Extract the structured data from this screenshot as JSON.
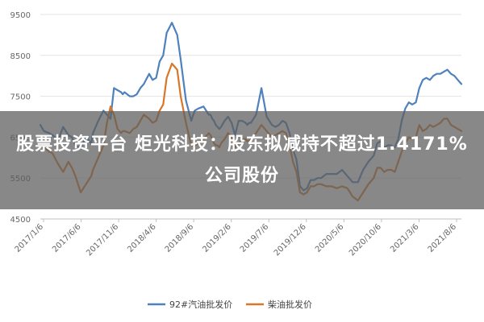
{
  "headline": "股票投资平台 炬光科技：股东拟减持不超过1.4171%公司股份",
  "chart_data": {
    "type": "line",
    "ylim": [
      4500,
      9500
    ],
    "yticks": [
      4500,
      5500,
      6500,
      7500,
      8500,
      9500
    ],
    "ytick_labels": [
      "4500",
      "5500",
      "6500",
      "7500",
      "8500",
      "9500"
    ],
    "xtick_labels": [
      "2017/1/6",
      "2017/6/6",
      "2017/11/6",
      "2018/4/6",
      "2018/9/6",
      "2019/2/6",
      "2019/7/6",
      "2019/12/6",
      "2020/5/6",
      "2020/10/6",
      "2021/3/6",
      "2021/8/6"
    ],
    "grid": "horizontal",
    "legend_position": "bottom",
    "series": [
      {
        "name": "92#汽油批发价",
        "color": "#4f81bd",
        "x": [
          0,
          2,
          5,
          7,
          10,
          13,
          16,
          18,
          20,
          23,
          26,
          29,
          30,
          33,
          36,
          38,
          40,
          42,
          44,
          46,
          47,
          48,
          51,
          53,
          55,
          57,
          59,
          62,
          64,
          66,
          68,
          70,
          72,
          75,
          78,
          80,
          83,
          86,
          88,
          90,
          93,
          96,
          97,
          98,
          99,
          100,
          101,
          102,
          103,
          105,
          107,
          109,
          111,
          113,
          115,
          117,
          118,
          119,
          120,
          123,
          126,
          129,
          132,
          134,
          136,
          138,
          140,
          142,
          144,
          146,
          148,
          150,
          152,
          154,
          156,
          158,
          160,
          163,
          166,
          169,
          172,
          175,
          178,
          181,
          184,
          187,
          190,
          192,
          194,
          196,
          198,
          200,
          202,
          204,
          206,
          208,
          210,
          212,
          214,
          216,
          218,
          220,
          222,
          224,
          226,
          228,
          230,
          232,
          234,
          236,
          238,
          240
        ],
        "values": [
          6800,
          6650,
          6600,
          6550,
          6420,
          6750,
          6550,
          6500,
          6300,
          6220,
          6500,
          6350,
          6600,
          6900,
          7150,
          7050,
          6950,
          7700,
          7650,
          7600,
          7550,
          7600,
          7500,
          7500,
          7550,
          7700,
          7800,
          8050,
          7900,
          7950,
          8350,
          8500,
          9050,
          9300,
          9000,
          8400,
          7400,
          6900,
          7150,
          7200,
          7250,
          7050,
          7050,
          6950,
          6900,
          6800,
          6750,
          6700,
          6750,
          6900,
          7000,
          6850,
          6550,
          6900,
          6900,
          6850,
          6800,
          6850,
          6850,
          7050,
          7700,
          7000,
          6800,
          6750,
          6800,
          6900,
          6850,
          6600,
          6200,
          5950,
          5300,
          5200,
          5250,
          5450,
          5450,
          5500,
          5500,
          5600,
          5600,
          5600,
          5700,
          5550,
          5400,
          5400,
          5700,
          5900,
          6050,
          6350,
          6400,
          6250,
          6300,
          6300,
          6250,
          6450,
          6900,
          7200,
          7350,
          7300,
          7350,
          7700,
          7900,
          7950,
          7900,
          8000,
          8050,
          8050,
          8100,
          8150,
          8050,
          8000,
          7900,
          7800
        ]
      },
      {
        "name": "柴油批发价",
        "color": "#d6772a",
        "x": [
          0,
          2,
          5,
          7,
          10,
          13,
          16,
          18,
          20,
          23,
          26,
          29,
          30,
          33,
          36,
          38,
          40,
          42,
          44,
          46,
          47,
          48,
          51,
          53,
          55,
          57,
          59,
          62,
          64,
          66,
          68,
          70,
          72,
          75,
          78,
          80,
          83,
          86,
          88,
          90,
          93,
          96,
          97,
          98,
          99,
          100,
          101,
          102,
          103,
          105,
          107,
          109,
          111,
          113,
          115,
          117,
          118,
          119,
          120,
          123,
          126,
          129,
          132,
          134,
          136,
          138,
          140,
          142,
          144,
          146,
          148,
          150,
          152,
          154,
          156,
          158,
          160,
          163,
          166,
          169,
          172,
          175,
          178,
          181,
          184,
          187,
          190,
          192,
          194,
          196,
          198,
          200,
          202,
          204,
          206,
          208,
          210,
          212,
          214,
          216,
          218,
          220,
          222,
          224,
          226,
          228,
          230,
          232,
          234,
          236,
          238,
          240
        ],
        "values": [
          6300,
          6250,
          6150,
          6100,
          5850,
          5650,
          5900,
          5750,
          5550,
          5150,
          5350,
          5550,
          5700,
          6000,
          6300,
          6850,
          7250,
          7050,
          6700,
          6600,
          6650,
          6650,
          6600,
          6700,
          6750,
          6900,
          7050,
          6950,
          6850,
          6900,
          7150,
          7300,
          7950,
          8300,
          8150,
          7500,
          6850,
          6300,
          6300,
          6350,
          6450,
          6600,
          6550,
          6450,
          6350,
          6300,
          6300,
          6250,
          6350,
          6450,
          6600,
          6500,
          6250,
          6350,
          6450,
          6450,
          6400,
          6400,
          6450,
          6600,
          6800,
          6650,
          6500,
          6550,
          6600,
          6650,
          6600,
          6300,
          5900,
          5650,
          5150,
          5100,
          5150,
          5300,
          5300,
          5350,
          5350,
          5300,
          5300,
          5250,
          5300,
          5250,
          5050,
          4950,
          5150,
          5350,
          5500,
          5750,
          5750,
          5650,
          5700,
          5700,
          5650,
          5900,
          6150,
          6350,
          6500,
          6450,
          6500,
          6800,
          6650,
          6700,
          6800,
          6750,
          6800,
          6850,
          6950,
          6950,
          6800,
          6750,
          6700,
          6650
        ]
      }
    ]
  }
}
